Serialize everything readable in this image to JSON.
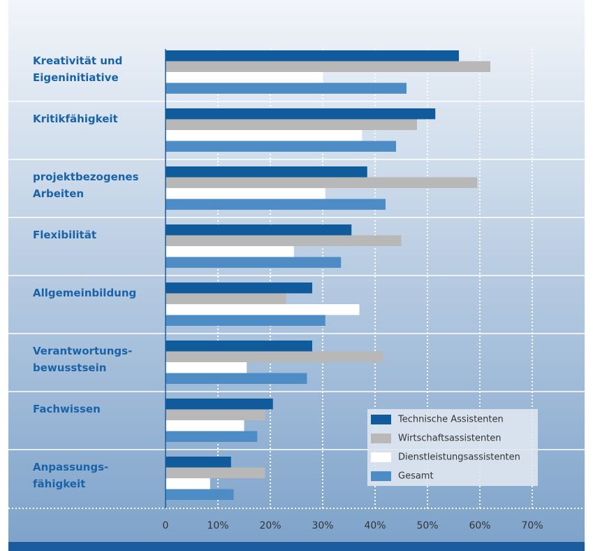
{
  "chart_data": {
    "type": "hbar",
    "categories": [
      "Kreativität und\nEigeninitiative",
      "Kritikfähigkeit",
      "projektbezogenes\nArbeiten",
      "Flexibilität",
      "Allgemeinbildung",
      "Verantwortungs-\nbewusstsein",
      "Fachwissen",
      "Anpassungs-\nfähigkeit"
    ],
    "series": [
      {
        "name": "Technische Assistenten",
        "color": "#0f5b9c",
        "values": [
          56,
          51.5,
          38.5,
          35.5,
          28,
          28,
          20.5,
          12.5
        ]
      },
      {
        "name": "Wirtschaftsassistenten",
        "color": "#b8b8b8",
        "values": [
          62,
          48,
          59.5,
          45,
          23,
          41.5,
          19,
          19
        ]
      },
      {
        "name": "Dienstleistungsassistenten",
        "color": "#ffffff",
        "values": [
          30,
          37.5,
          30.5,
          24.5,
          37,
          15.5,
          15,
          8.5
        ]
      },
      {
        "name": "Gesamt",
        "color": "#4d8cc4",
        "values": [
          46,
          44,
          42,
          33.5,
          30.5,
          27,
          17.5,
          13
        ]
      }
    ],
    "xlim": [
      0,
      80
    ],
    "xticks": [
      0,
      {
        "value": 10,
        "label": "10%"
      },
      {
        "value": 20,
        "label": "20%"
      },
      {
        "value": 30,
        "label": "30%"
      },
      {
        "value": 40,
        "label": "40%"
      },
      {
        "value": 50,
        "label": "50%"
      },
      {
        "value": 60,
        "label": "60%"
      },
      {
        "value": 70,
        "label": "70%"
      }
    ],
    "grid": true,
    "legend": "lower right"
  }
}
